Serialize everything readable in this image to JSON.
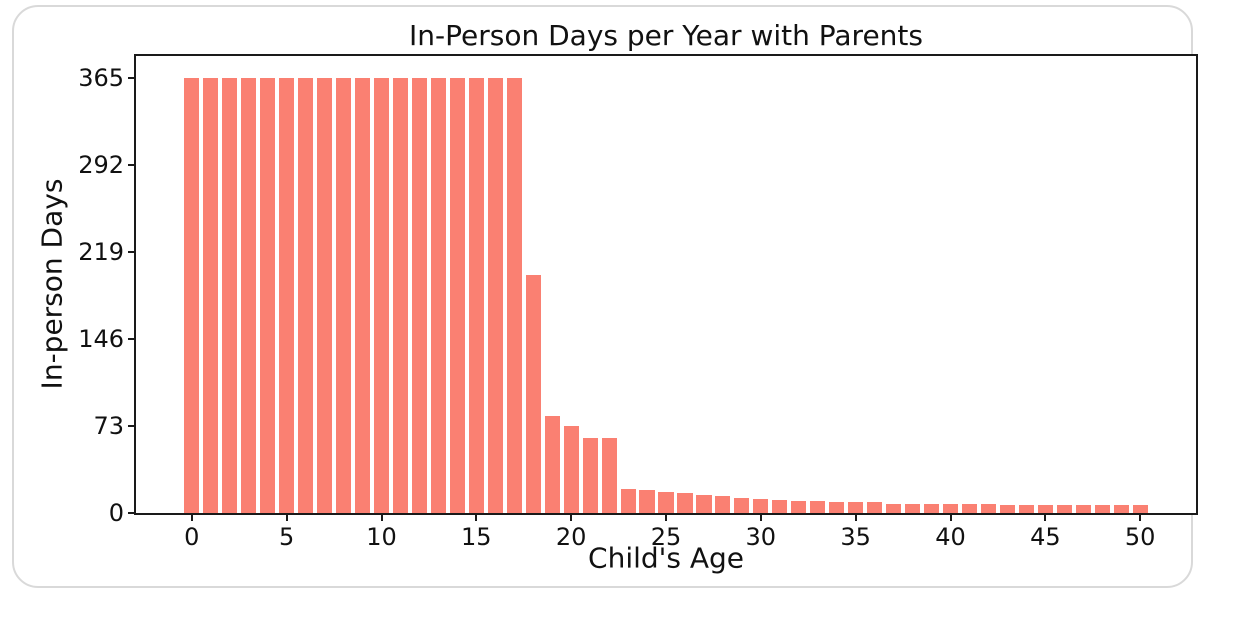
{
  "chart_data": {
    "type": "bar",
    "title": "In-Person Days per Year with Parents",
    "xlabel": "Child's Age",
    "ylabel": "In-person Days",
    "bar_color": "#FA8072",
    "axis_color": "#1a1a1a",
    "background_color": "#ffffff",
    "card_border_color": "#d9d9d9",
    "legend": "none",
    "grid": false,
    "ages": [
      0,
      1,
      2,
      3,
      4,
      5,
      6,
      7,
      8,
      9,
      10,
      11,
      12,
      13,
      14,
      15,
      16,
      17,
      18,
      19,
      20,
      21,
      22,
      23,
      24,
      25,
      26,
      27,
      28,
      29,
      30,
      31,
      32,
      33,
      34,
      35,
      36,
      37,
      38,
      39,
      40,
      41,
      42,
      43,
      44,
      45,
      46,
      47,
      48,
      49,
      50
    ],
    "values": [
      365,
      365,
      365,
      365,
      365,
      365,
      365,
      365,
      365,
      365,
      365,
      365,
      365,
      365,
      365,
      365,
      365,
      365,
      200,
      81,
      73,
      63,
      63,
      20,
      19,
      18,
      17,
      15,
      14,
      13,
      12,
      11,
      10,
      10,
      9,
      9,
      9,
      8,
      8,
      8,
      8,
      8,
      8,
      7,
      7,
      7,
      7,
      7,
      7,
      7,
      7
    ],
    "xticks": [
      0,
      5,
      10,
      15,
      20,
      25,
      30,
      35,
      40,
      45,
      50
    ],
    "yticks": [
      0,
      73,
      146,
      219,
      292,
      365
    ],
    "xlim": [
      -2.94,
      52.94
    ],
    "ylim": [
      0,
      383.25
    ],
    "bar_width_units": 0.8
  }
}
